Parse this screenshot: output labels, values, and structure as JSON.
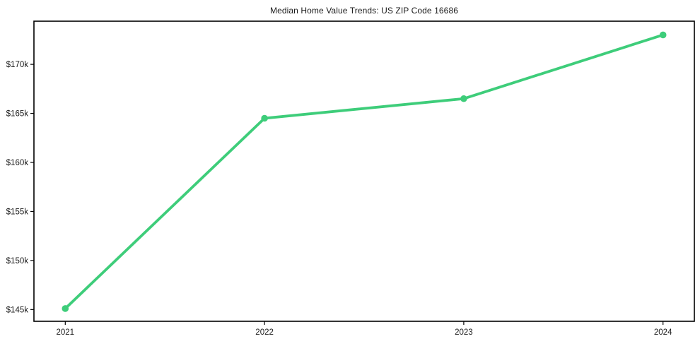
{
  "chart_data": {
    "type": "line",
    "title": "Median Home Value Trends: US ZIP Code 16686",
    "xlabel": "",
    "ylabel": "",
    "categories": [
      "2021",
      "2022",
      "2023",
      "2024"
    ],
    "series": [
      {
        "name": "Median Home Value",
        "values": [
          145100,
          164500,
          166500,
          173000
        ]
      }
    ],
    "y_ticks": [
      {
        "value": 145000,
        "label": "$145k"
      },
      {
        "value": 150000,
        "label": "$150k"
      },
      {
        "value": 155000,
        "label": "$155k"
      },
      {
        "value": 160000,
        "label": "$160k"
      },
      {
        "value": 165000,
        "label": "$165k"
      },
      {
        "value": 170000,
        "label": "$170k"
      }
    ],
    "ylim": [
      143800,
      174400
    ],
    "grid": false,
    "legend": "none",
    "line_color": "#3ecd7a",
    "marker_color": "#3ecd7a",
    "axis_color": "#000000",
    "text_color": "#1a1a1a",
    "background_color": "#ffffff"
  }
}
